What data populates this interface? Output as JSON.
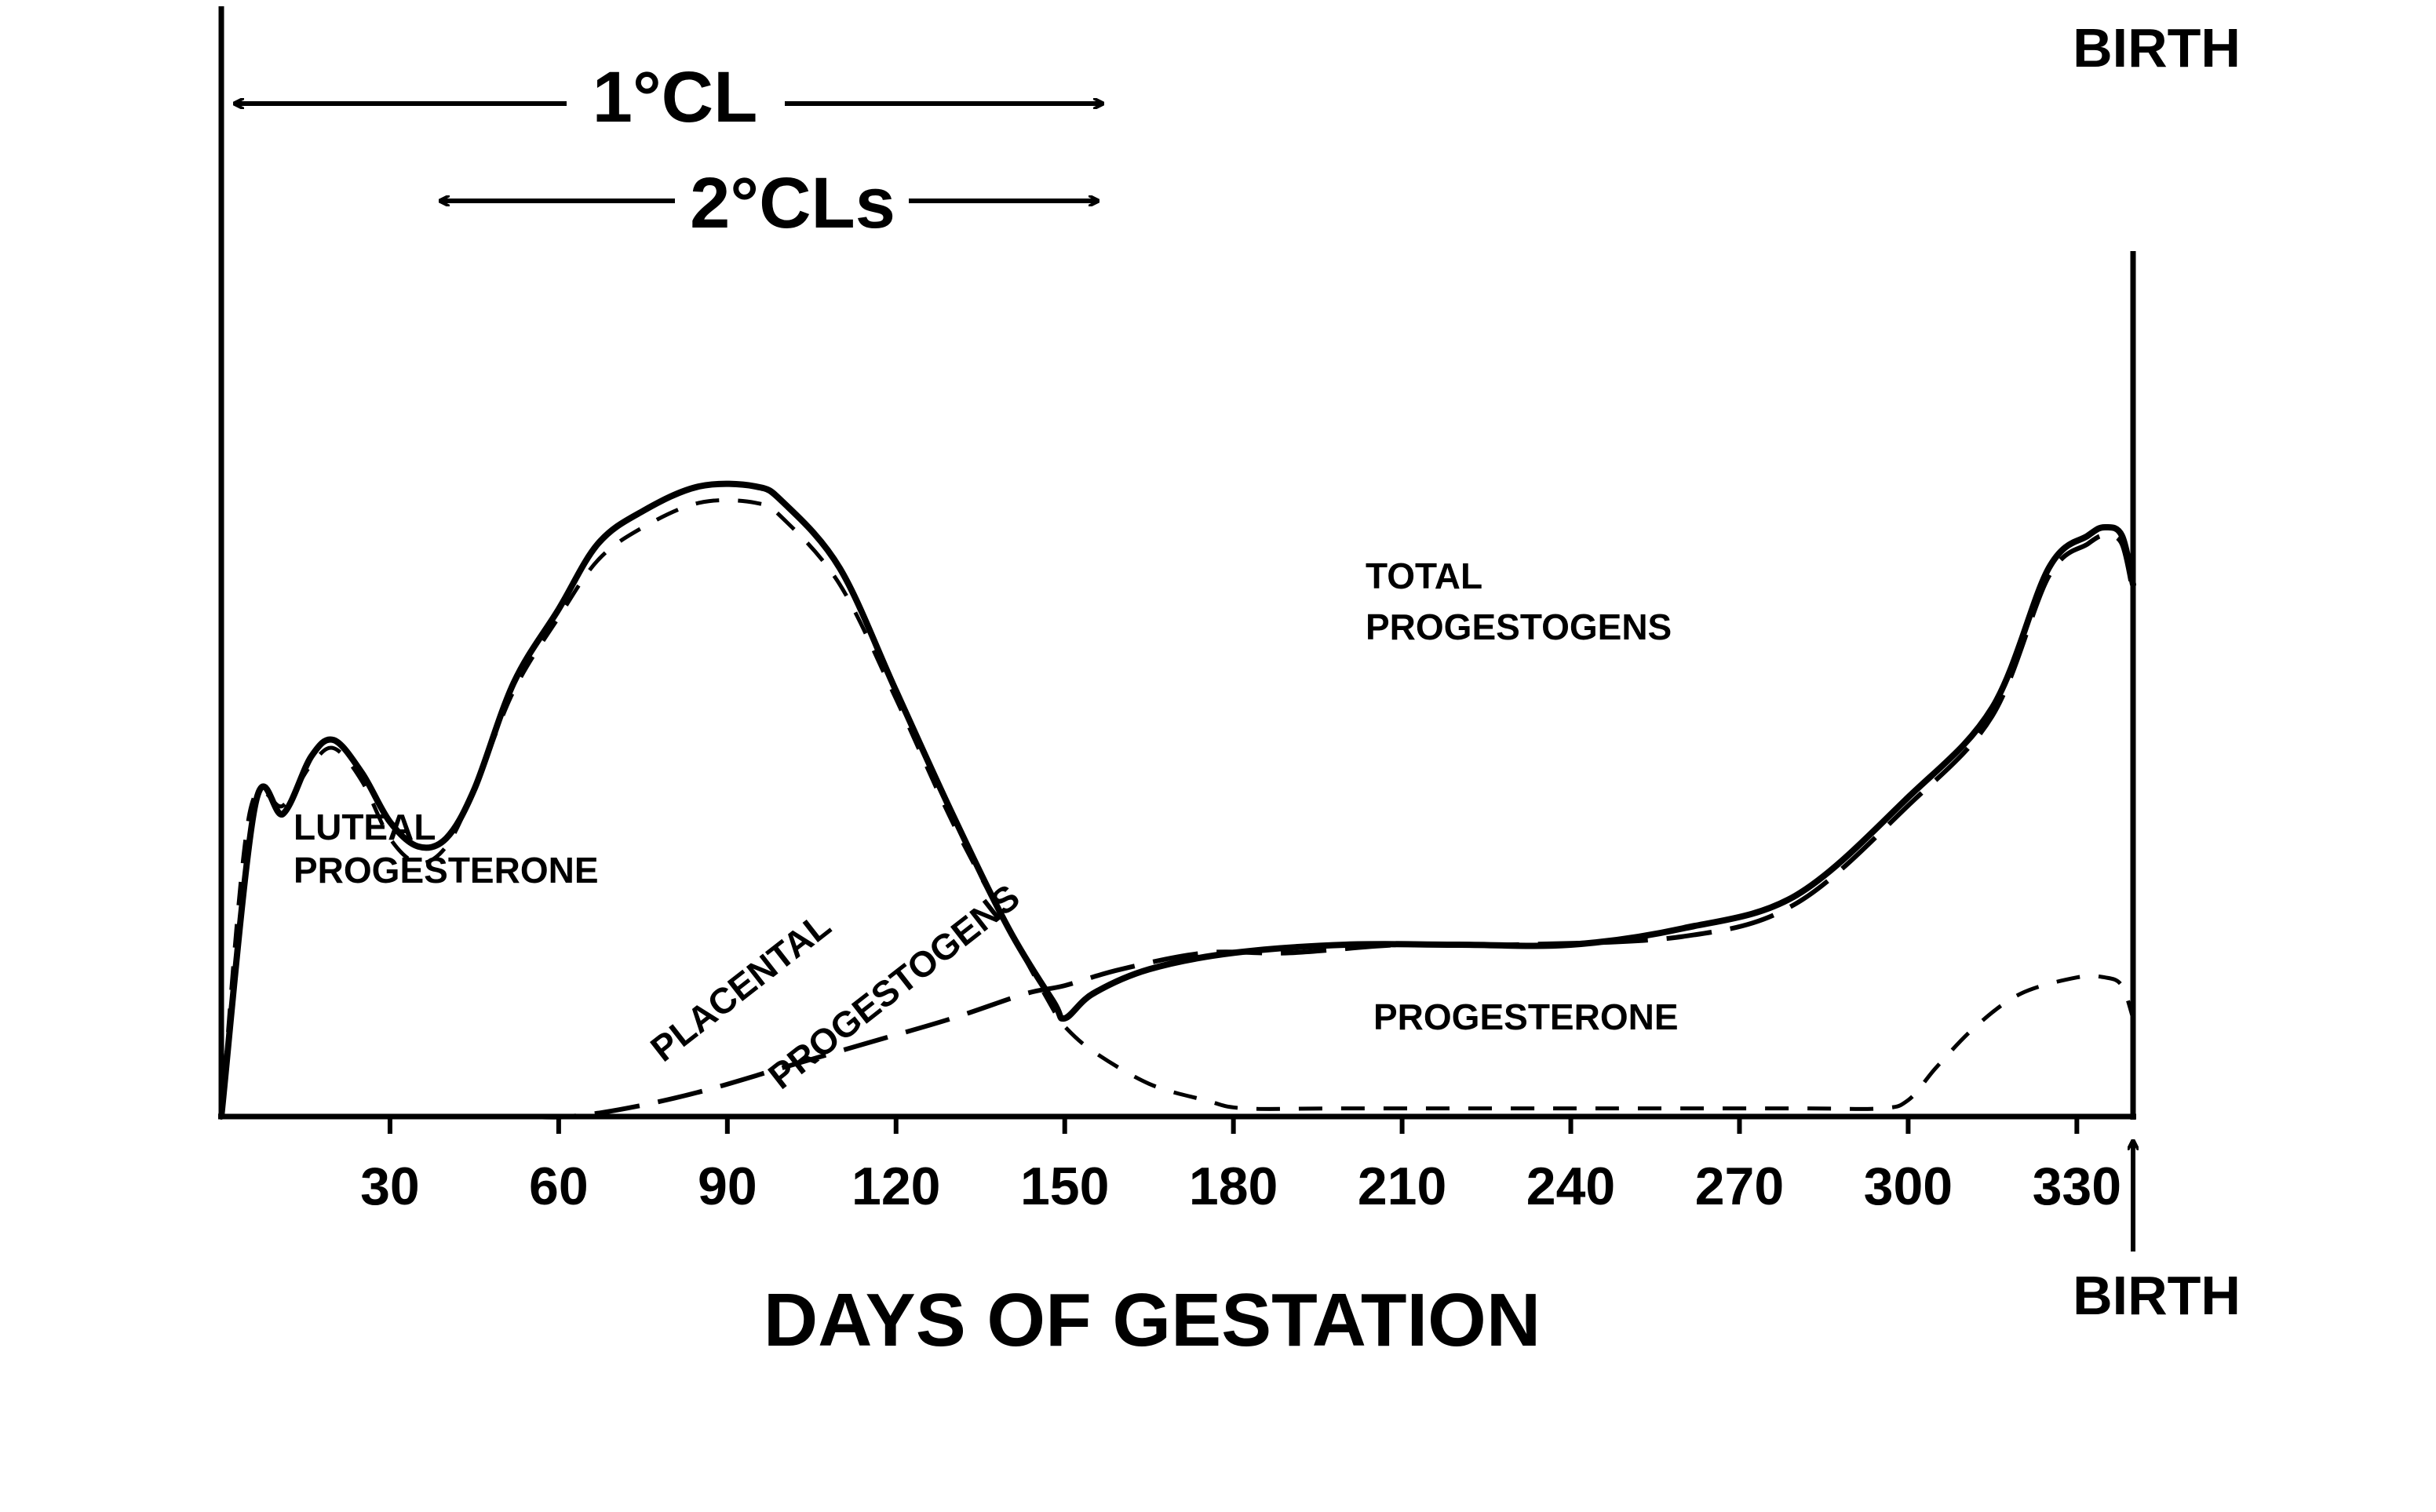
{
  "chart_data": {
    "type": "line",
    "title": "",
    "xlabel": "DAYS OF GESTATION",
    "ylabel": "",
    "xlim": [
      0,
      340
    ],
    "ylim": [
      0,
      1
    ],
    "grid": false,
    "legend": "none",
    "x_ticks": [
      30,
      60,
      90,
      120,
      150,
      180,
      210,
      240,
      270,
      300,
      330
    ],
    "series": [
      {
        "name": "TOTAL PROGESTOGENS",
        "style": "solid",
        "points": [
          [
            0,
            0
          ],
          [
            6,
            0.38
          ],
          [
            11,
            0.37
          ],
          [
            16,
            0.44
          ],
          [
            20,
            0.46
          ],
          [
            25,
            0.42
          ],
          [
            30,
            0.36
          ],
          [
            35,
            0.33
          ],
          [
            40,
            0.34
          ],
          [
            45,
            0.4
          ],
          [
            52,
            0.53
          ],
          [
            60,
            0.62
          ],
          [
            67,
            0.7
          ],
          [
            75,
            0.74
          ],
          [
            85,
            0.77
          ],
          [
            95,
            0.77
          ],
          [
            100,
            0.75
          ],
          [
            110,
            0.67
          ],
          [
            120,
            0.52
          ],
          [
            130,
            0.37
          ],
          [
            140,
            0.23
          ],
          [
            148,
            0.14
          ],
          [
            150,
            0.12
          ],
          [
            155,
            0.15
          ],
          [
            165,
            0.18
          ],
          [
            180,
            0.2
          ],
          [
            200,
            0.21
          ],
          [
            220,
            0.21
          ],
          [
            240,
            0.21
          ],
          [
            260,
            0.23
          ],
          [
            280,
            0.27
          ],
          [
            300,
            0.39
          ],
          [
            315,
            0.5
          ],
          [
            325,
            0.67
          ],
          [
            332,
            0.71
          ],
          [
            335,
            0.72
          ],
          [
            338,
            0.71
          ],
          [
            340,
            0.65
          ]
        ]
      },
      {
        "name": "LUTEAL PROGESTERONE",
        "style": "dashed-short",
        "points": [
          [
            0,
            0
          ],
          [
            5,
            0.37
          ],
          [
            11,
            0.38
          ],
          [
            16,
            0.43
          ],
          [
            20,
            0.45
          ],
          [
            25,
            0.41
          ],
          [
            30,
            0.34
          ],
          [
            35,
            0.31
          ],
          [
            40,
            0.33
          ],
          [
            45,
            0.4
          ],
          [
            52,
            0.52
          ],
          [
            60,
            0.61
          ],
          [
            67,
            0.68
          ],
          [
            75,
            0.72
          ],
          [
            85,
            0.75
          ],
          [
            95,
            0.75
          ],
          [
            100,
            0.73
          ],
          [
            110,
            0.65
          ],
          [
            120,
            0.51
          ],
          [
            130,
            0.36
          ],
          [
            140,
            0.23
          ],
          [
            148,
            0.13
          ],
          [
            150,
            0.11
          ],
          [
            155,
            0.08
          ],
          [
            165,
            0.04
          ],
          [
            175,
            0.02
          ],
          [
            182,
            0.01
          ],
          [
            200,
            0.01
          ],
          [
            240,
            0.01
          ],
          [
            280,
            0.01
          ],
          [
            295,
            0.01
          ],
          [
            300,
            0.02
          ],
          [
            305,
            0.06
          ],
          [
            312,
            0.11
          ],
          [
            320,
            0.15
          ],
          [
            330,
            0.17
          ],
          [
            335,
            0.17
          ],
          [
            338,
            0.16
          ],
          [
            340,
            0.12
          ]
        ]
      },
      {
        "name": "PLACENTAL PROGESTOGENS",
        "style": "dashed-long",
        "points": [
          [
            55,
            0
          ],
          [
            62,
            0.0
          ],
          [
            72,
            0.01
          ],
          [
            85,
            0.03
          ],
          [
            100,
            0.06
          ],
          [
            115,
            0.09
          ],
          [
            130,
            0.12
          ],
          [
            143,
            0.15
          ],
          [
            150,
            0.16
          ],
          [
            160,
            0.18
          ],
          [
            175,
            0.2
          ],
          [
            190,
            0.2
          ],
          [
            210,
            0.21
          ],
          [
            230,
            0.21
          ],
          [
            260,
            0.22
          ],
          [
            280,
            0.26
          ],
          [
            300,
            0.38
          ],
          [
            315,
            0.49
          ],
          [
            325,
            0.66
          ],
          [
            332,
            0.7
          ],
          [
            335,
            0.71
          ],
          [
            338,
            0.7
          ],
          [
            340,
            0.64
          ]
        ]
      }
    ],
    "annotations": {
      "primary_cl": "1°CL",
      "secondary_cls": "2°CLs",
      "birth_top": "BIRTH",
      "birth_bottom": "BIRTH",
      "luteal_label_line1": "LUTEAL",
      "luteal_label_line2": "PROGESTERONE",
      "total_label_line1": "TOTAL",
      "total_label_line2": "PROGESTOGENS",
      "placental_label_line1": "PLACENTAL",
      "placental_label_line2": "PROGESTOGENS",
      "progesterone_label": "PROGESTERONE"
    }
  }
}
